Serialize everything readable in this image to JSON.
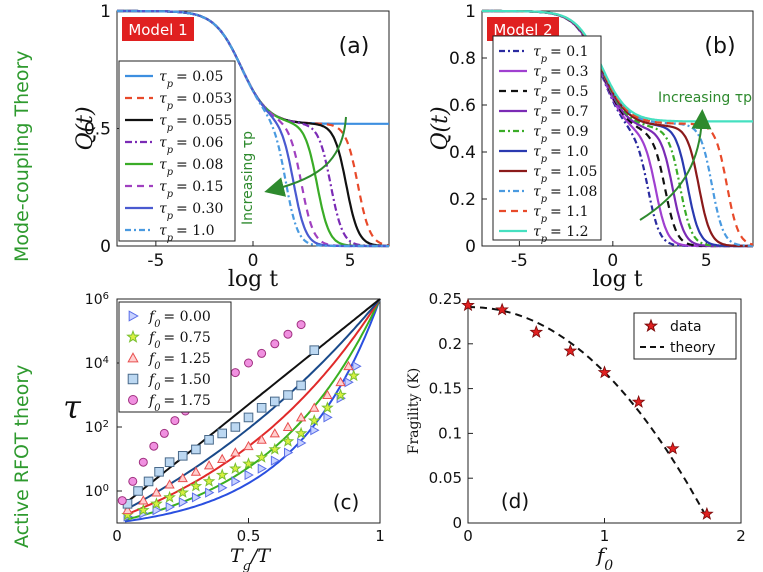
{
  "row_labels": {
    "top": "Mode-coupling Theory",
    "bottom": "Active RFOT theory",
    "color": "#2e9a2e"
  },
  "chart_data": [
    {
      "id": "a",
      "type": "line",
      "panel_label": "(a)",
      "model_label": "Model 1",
      "ylabel": "Q(t)",
      "xlabel": "log t",
      "xlim": [
        -7,
        7
      ],
      "ylim": [
        0,
        1
      ],
      "xticks": [
        {
          "v": -5,
          "t": "-5"
        },
        {
          "v": 0,
          "t": "0"
        },
        {
          "v": 5,
          "t": "5"
        }
      ],
      "yticks": [
        {
          "v": 0,
          "t": "0"
        },
        {
          "v": 0.5,
          "t": "0.5"
        },
        {
          "v": 1,
          "t": "1"
        }
      ],
      "annotation": "Increasing τp",
      "legend_prefix": "τ",
      "legend_sub": "p",
      "series": [
        {
          "name": "= 0.05",
          "color": "#3d8fe0",
          "dash": "",
          "plateau": 0.52,
          "t2": null
        },
        {
          "name": "= 0.053",
          "color": "#e84a2a",
          "dash": "7,5",
          "plateau": 0.52,
          "t2": 5.4
        },
        {
          "name": "= 0.055",
          "color": "#111111",
          "dash": "",
          "plateau": 0.52,
          "t2": 4.8
        },
        {
          "name": "= 0.06",
          "color": "#7b2bb5",
          "dash": "7,3,2,3",
          "plateau": 0.52,
          "t2": 4.0
        },
        {
          "name": "= 0.08",
          "color": "#3aac27",
          "dash": "",
          "plateau": 0.52,
          "t2": 3.3
        },
        {
          "name": "= 0.15",
          "color": "#a040c0",
          "dash": "7,5",
          "plateau": 0.52,
          "t2": 2.5
        },
        {
          "name": "= 0.30",
          "color": "#4a5ad0",
          "dash": "",
          "plateau": 0.52,
          "t2": 2.1
        },
        {
          "name": "= 1.0",
          "color": "#4a9ae0",
          "dash": "6,3,2,3",
          "plateau": 0.52,
          "t2": 1.7
        }
      ]
    },
    {
      "id": "b",
      "type": "line",
      "panel_label": "(b)",
      "model_label": "Model 2",
      "ylabel": "Q(t)",
      "xlabel": "log t",
      "xlim": [
        -7,
        7.5
      ],
      "ylim": [
        0,
        1
      ],
      "xticks": [
        {
          "v": -5,
          "t": "-5"
        },
        {
          "v": 0,
          "t": "0"
        },
        {
          "v": 5,
          "t": "5"
        }
      ],
      "yticks": [
        {
          "v": 0,
          "t": "0"
        },
        {
          "v": 0.2,
          "t": "0.2"
        },
        {
          "v": 0.4,
          "t": "0.4"
        },
        {
          "v": 0.6,
          "t": "0.6"
        },
        {
          "v": 0.8,
          "t": "0.8"
        },
        {
          "v": 1,
          "t": "1"
        }
      ],
      "annotation": "Increasing τp",
      "legend_prefix": "τ",
      "legend_sub": "p",
      "series": [
        {
          "name": "= 0.1",
          "color": "#2a2aa0",
          "dash": "6,3,2,3",
          "plateau": 0.46,
          "t2": 1.9
        },
        {
          "name": "= 0.3",
          "color": "#a040d0",
          "dash": "",
          "plateau": 0.47,
          "t2": 2.3
        },
        {
          "name": "= 0.5",
          "color": "#111111",
          "dash": "7,5",
          "plateau": 0.48,
          "t2": 2.8
        },
        {
          "name": "= 0.7",
          "color": "#7b2bb5",
          "dash": "",
          "plateau": 0.49,
          "t2": 3.2
        },
        {
          "name": "= 0.9",
          "color": "#3aac27",
          "dash": "6,3,2,3",
          "plateau": 0.5,
          "t2": 3.6
        },
        {
          "name": "= 1.0",
          "color": "#2a3ab0",
          "dash": "",
          "plateau": 0.51,
          "t2": 4.0
        },
        {
          "name": "= 1.05",
          "color": "#8b1a1a",
          "dash": "",
          "plateau": 0.51,
          "t2": 4.6
        },
        {
          "name": "= 1.08",
          "color": "#4a9ae0",
          "dash": "6,3,2,3",
          "plateau": 0.52,
          "t2": 5.3
        },
        {
          "name": "= 1.1",
          "color": "#e84a2a",
          "dash": "7,5",
          "plateau": 0.52,
          "t2": 6.1
        },
        {
          "name": "= 1.2",
          "color": "#45e0c0",
          "dash": "",
          "plateau": 0.53,
          "t2": null
        }
      ]
    },
    {
      "id": "c",
      "type": "scatter",
      "panel_label": "(c)",
      "ylabel": "τ",
      "xlabel": "Tg/T",
      "xlim": [
        0,
        1
      ],
      "ylim_log10": [
        -1,
        6
      ],
      "xticks": [
        {
          "v": 0,
          "t": "0"
        },
        {
          "v": 0.5,
          "t": "0.5"
        },
        {
          "v": 1,
          "t": "1"
        }
      ],
      "yticks": [
        {
          "e": 0,
          "t": "10",
          "sup": "0"
        },
        {
          "e": 2,
          "t": "10",
          "sup": "2"
        },
        {
          "e": 4,
          "t": "10",
          "sup": "4"
        },
        {
          "e": 6,
          "t": "10",
          "sup": "6"
        }
      ],
      "legend_prefix": "f",
      "legend_sub": "0",
      "series": [
        {
          "name": "= 0.00",
          "marker": "triangle-right",
          "color": "#5a6ee8",
          "fill": "#c8d2ff",
          "line": "#2a4fe0",
          "x": [
            0.04,
            0.1,
            0.15,
            0.2,
            0.25,
            0.3,
            0.35,
            0.4,
            0.45,
            0.5,
            0.55,
            0.6,
            0.65,
            0.7,
            0.75,
            0.8,
            0.85,
            0.88,
            0.91
          ],
          "y": [
            -0.8,
            -0.7,
            -0.6,
            -0.5,
            -0.35,
            -0.2,
            -0.05,
            0.1,
            0.3,
            0.5,
            0.7,
            0.95,
            1.2,
            1.5,
            1.9,
            2.3,
            2.9,
            3.4,
            3.9
          ]
        },
        {
          "name": "= 0.75",
          "marker": "star",
          "color": "#7ac030",
          "fill": "#d8f040",
          "line": "#3ab020",
          "x": [
            0.04,
            0.1,
            0.15,
            0.2,
            0.25,
            0.3,
            0.35,
            0.4,
            0.45,
            0.5,
            0.55,
            0.6,
            0.65,
            0.7,
            0.75,
            0.8,
            0.85,
            0.9
          ],
          "y": [
            -0.75,
            -0.6,
            -0.4,
            -0.2,
            -0.05,
            0.15,
            0.3,
            0.5,
            0.7,
            0.85,
            1.05,
            1.3,
            1.55,
            1.8,
            2.2,
            2.6,
            3.0,
            3.6
          ]
        },
        {
          "name": "= 1.25",
          "marker": "triangle-up",
          "color": "#e85050",
          "fill": "#ffd0d0",
          "line": "#e02a2a",
          "x": [
            0.04,
            0.1,
            0.15,
            0.2,
            0.25,
            0.3,
            0.35,
            0.4,
            0.45,
            0.5,
            0.55,
            0.6,
            0.65,
            0.7,
            0.75,
            0.8,
            0.85,
            0.88
          ],
          "y": [
            -0.6,
            -0.3,
            -0.05,
            0.2,
            0.4,
            0.6,
            0.8,
            1.0,
            1.2,
            1.4,
            1.6,
            1.8,
            2.0,
            2.3,
            2.6,
            3.0,
            3.4,
            3.9
          ]
        },
        {
          "name": "= 1.50",
          "marker": "square",
          "color": "#4a6a8a",
          "fill": "#bcd8f2",
          "line": "#1a4a8a",
          "x": [
            0.04,
            0.08,
            0.12,
            0.16,
            0.2,
            0.25,
            0.3,
            0.35,
            0.4,
            0.45,
            0.5,
            0.55,
            0.6,
            0.65,
            0.7,
            0.75
          ],
          "y": [
            -0.4,
            0.0,
            0.3,
            0.6,
            0.9,
            1.1,
            1.3,
            1.6,
            1.8,
            2.0,
            2.3,
            2.6,
            2.8,
            3.0,
            3.3,
            4.4
          ]
        },
        {
          "name": "= 1.75",
          "marker": "circle",
          "color": "#a03080",
          "fill": "#f090e0",
          "line": "#111111",
          "x": [
            0.02,
            0.06,
            0.1,
            0.14,
            0.18,
            0.22,
            0.26,
            0.3,
            0.34,
            0.4,
            0.45,
            0.5,
            0.55,
            0.6,
            0.65,
            0.7
          ],
          "y": [
            -0.3,
            0.3,
            0.9,
            1.4,
            1.8,
            2.2,
            2.5,
            2.8,
            3.0,
            3.4,
            3.7,
            4.0,
            4.3,
            4.6,
            4.9,
            5.2
          ]
        }
      ]
    },
    {
      "id": "d",
      "type": "scatter",
      "panel_label": "(d)",
      "ylabel": "Fragility (K)",
      "xlabel": "f0",
      "xlim": [
        0,
        2
      ],
      "ylim": [
        0,
        0.25
      ],
      "xticks": [
        {
          "v": 0,
          "t": "0"
        },
        {
          "v": 1,
          "t": "1"
        },
        {
          "v": 2,
          "t": "2"
        }
      ],
      "yticks": [
        {
          "v": 0,
          "t": "0"
        },
        {
          "v": 0.05,
          "t": "0.05"
        },
        {
          "v": 0.1,
          "t": "0.1"
        },
        {
          "v": 0.15,
          "t": "0.15"
        },
        {
          "v": 0.2,
          "t": "0.2"
        },
        {
          "v": 0.25,
          "t": "0.25"
        }
      ],
      "legend": [
        "data",
        "theory"
      ],
      "data_x": [
        0.0,
        0.25,
        0.5,
        0.75,
        1.0,
        1.25,
        1.5,
        1.75
      ],
      "data_y": [
        0.243,
        0.238,
        0.213,
        0.192,
        0.168,
        0.135,
        0.083,
        0.01
      ],
      "theory_x": [
        0,
        0.2,
        0.4,
        0.6,
        0.8,
        1.0,
        1.2,
        1.4,
        1.6,
        1.75
      ],
      "theory_y": [
        0.241,
        0.238,
        0.229,
        0.212,
        0.189,
        0.158,
        0.12,
        0.075,
        0.03,
        0.005
      ]
    }
  ]
}
